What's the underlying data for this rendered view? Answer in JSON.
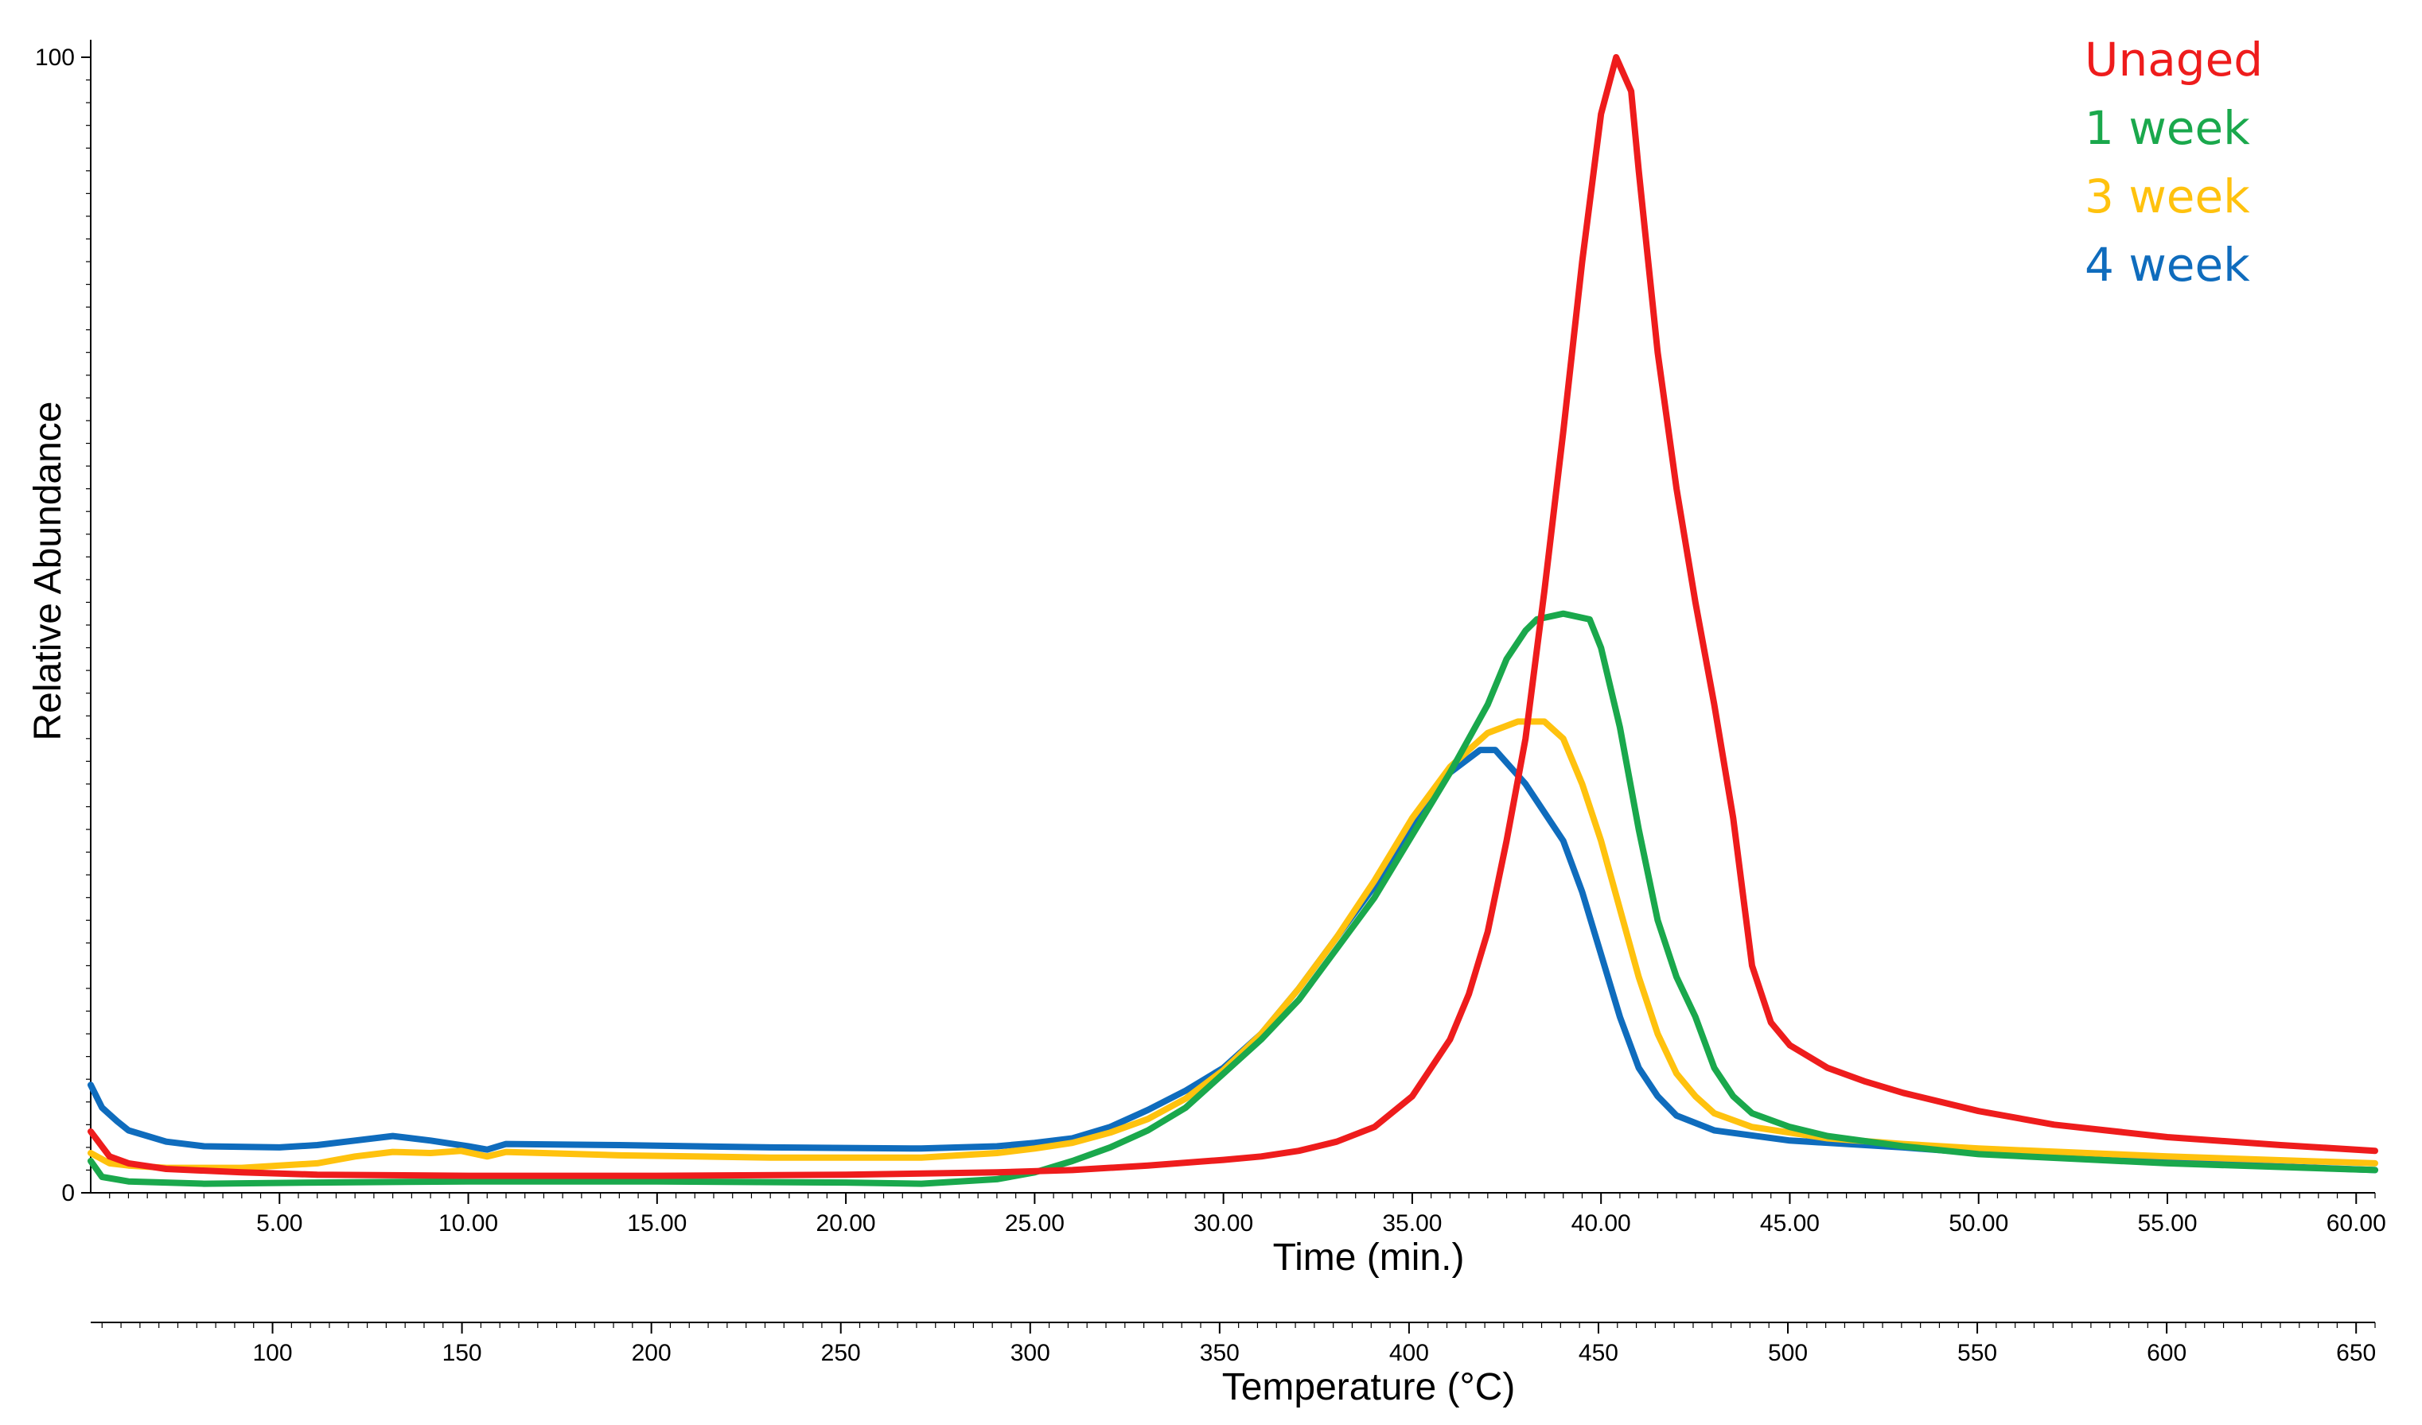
{
  "chart_data": {
    "type": "line",
    "title": "",
    "ylabel": "Relative Abundance",
    "xlabel": "Time (min.)",
    "x2label": "Temperature (°C)",
    "xlim": [
      0,
      60.5
    ],
    "ylim": [
      0,
      100
    ],
    "x2lim": [
      52,
      655
    ],
    "y_ticks": [
      "0",
      "100"
    ],
    "x_ticks": [
      {
        "v": 5,
        "label": "5.00"
      },
      {
        "v": 10,
        "label": "10.00"
      },
      {
        "v": 15,
        "label": "15.00"
      },
      {
        "v": 20,
        "label": "20.00"
      },
      {
        "v": 25,
        "label": "25.00"
      },
      {
        "v": 30,
        "label": "30.00"
      },
      {
        "v": 35,
        "label": "35.00"
      },
      {
        "v": 40,
        "label": "40.00"
      },
      {
        "v": 45,
        "label": "45.00"
      },
      {
        "v": 50,
        "label": "50.00"
      },
      {
        "v": 55,
        "label": "55.00"
      },
      {
        "v": 60,
        "label": "60.00"
      }
    ],
    "x2_ticks": [
      {
        "v": 100,
        "label": "100"
      },
      {
        "v": 150,
        "label": "150"
      },
      {
        "v": 200,
        "label": "200"
      },
      {
        "v": 250,
        "label": "250"
      },
      {
        "v": 300,
        "label": "300"
      },
      {
        "v": 350,
        "label": "350"
      },
      {
        "v": 400,
        "label": "400"
      },
      {
        "v": 450,
        "label": "450"
      },
      {
        "v": 500,
        "label": "500"
      },
      {
        "v": 550,
        "label": "550"
      },
      {
        "v": 600,
        "label": "600"
      },
      {
        "v": 650,
        "label": "650"
      }
    ],
    "legend_position": "top-right",
    "series": [
      {
        "name": "Unaged",
        "color": "#ee1c1c",
        "points": [
          [
            0,
            5.4
          ],
          [
            0.5,
            3.2
          ],
          [
            1,
            2.6
          ],
          [
            2,
            2.1
          ],
          [
            4,
            1.8
          ],
          [
            6,
            1.6
          ],
          [
            10,
            1.5
          ],
          [
            15,
            1.5
          ],
          [
            20,
            1.6
          ],
          [
            24,
            1.8
          ],
          [
            26,
            2.0
          ],
          [
            28,
            2.4
          ],
          [
            30,
            2.9
          ],
          [
            31,
            3.2
          ],
          [
            32,
            3.7
          ],
          [
            33,
            4.5
          ],
          [
            34,
            5.8
          ],
          [
            35,
            8.5
          ],
          [
            36,
            13.5
          ],
          [
            36.5,
            17.5
          ],
          [
            37,
            23
          ],
          [
            37.5,
            31
          ],
          [
            38,
            40
          ],
          [
            38.5,
            53
          ],
          [
            39,
            67
          ],
          [
            39.5,
            82
          ],
          [
            40,
            95
          ],
          [
            40.4,
            100
          ],
          [
            40.8,
            97
          ],
          [
            41,
            90
          ],
          [
            41.5,
            74
          ],
          [
            42,
            62
          ],
          [
            42.5,
            52
          ],
          [
            43,
            43
          ],
          [
            43.5,
            33
          ],
          [
            44,
            20
          ],
          [
            44.5,
            15
          ],
          [
            45,
            13
          ],
          [
            46,
            11
          ],
          [
            47,
            9.8
          ],
          [
            48,
            8.8
          ],
          [
            50,
            7.2
          ],
          [
            52,
            6.0
          ],
          [
            55,
            4.9
          ],
          [
            58,
            4.2
          ],
          [
            60.5,
            3.7
          ]
        ]
      },
      {
        "name": "1 week",
        "color": "#1aa84c",
        "points": [
          [
            0,
            2.8
          ],
          [
            0.3,
            1.4
          ],
          [
            1,
            1.0
          ],
          [
            3,
            0.8
          ],
          [
            6,
            0.9
          ],
          [
            10,
            1.0
          ],
          [
            15,
            1.0
          ],
          [
            20,
            0.9
          ],
          [
            22,
            0.8
          ],
          [
            24,
            1.2
          ],
          [
            25,
            1.8
          ],
          [
            26,
            2.8
          ],
          [
            27,
            4.0
          ],
          [
            28,
            5.5
          ],
          [
            29,
            7.5
          ],
          [
            30,
            10.5
          ],
          [
            31,
            13.5
          ],
          [
            32,
            17
          ],
          [
            33,
            21.5
          ],
          [
            34,
            26
          ],
          [
            35,
            31.5
          ],
          [
            36,
            37
          ],
          [
            37,
            43
          ],
          [
            37.5,
            47
          ],
          [
            38,
            49.5
          ],
          [
            38.3,
            50.5
          ],
          [
            39,
            51
          ],
          [
            39.7,
            50.5
          ],
          [
            40,
            48
          ],
          [
            40.5,
            41
          ],
          [
            41,
            32
          ],
          [
            41.5,
            24
          ],
          [
            42,
            19
          ],
          [
            42.5,
            15.5
          ],
          [
            43,
            11
          ],
          [
            43.5,
            8.5
          ],
          [
            44,
            7
          ],
          [
            45,
            5.8
          ],
          [
            46,
            5.0
          ],
          [
            48,
            4.1
          ],
          [
            50,
            3.4
          ],
          [
            55,
            2.6
          ],
          [
            60.5,
            2.0
          ]
        ]
      },
      {
        "name": "3 week",
        "color": "#ffc20e",
        "points": [
          [
            0,
            3.5
          ],
          [
            0.5,
            2.6
          ],
          [
            1,
            2.4
          ],
          [
            2,
            2.2
          ],
          [
            4,
            2.2
          ],
          [
            6,
            2.6
          ],
          [
            7,
            3.2
          ],
          [
            8,
            3.6
          ],
          [
            9,
            3.5
          ],
          [
            9.8,
            3.7
          ],
          [
            10.5,
            3.2
          ],
          [
            11,
            3.6
          ],
          [
            14,
            3.3
          ],
          [
            18,
            3.1
          ],
          [
            22,
            3.1
          ],
          [
            24,
            3.5
          ],
          [
            25,
            3.9
          ],
          [
            26,
            4.4
          ],
          [
            27,
            5.3
          ],
          [
            28,
            6.5
          ],
          [
            29,
            8.3
          ],
          [
            30,
            10.8
          ],
          [
            31,
            14
          ],
          [
            32,
            18
          ],
          [
            33,
            22.5
          ],
          [
            34,
            27.5
          ],
          [
            35,
            33
          ],
          [
            36,
            37.5
          ],
          [
            37,
            40.5
          ],
          [
            37.8,
            41.5
          ],
          [
            38.5,
            41.5
          ],
          [
            39,
            40
          ],
          [
            39.5,
            36
          ],
          [
            40,
            31
          ],
          [
            40.5,
            25
          ],
          [
            41,
            19
          ],
          [
            41.5,
            14
          ],
          [
            42,
            10.5
          ],
          [
            42.5,
            8.5
          ],
          [
            43,
            7
          ],
          [
            44,
            5.8
          ],
          [
            46,
            4.8
          ],
          [
            48,
            4.3
          ],
          [
            50,
            3.9
          ],
          [
            55,
            3.2
          ],
          [
            60.5,
            2.6
          ]
        ]
      },
      {
        "name": "4 week",
        "color": "#0f6cbd",
        "points": [
          [
            0,
            9.5
          ],
          [
            0.3,
            7.5
          ],
          [
            0.7,
            6.3
          ],
          [
            1,
            5.5
          ],
          [
            2,
            4.5
          ],
          [
            3,
            4.1
          ],
          [
            5,
            4.0
          ],
          [
            6,
            4.2
          ],
          [
            7,
            4.6
          ],
          [
            8,
            5.0
          ],
          [
            9,
            4.6
          ],
          [
            10,
            4.1
          ],
          [
            10.5,
            3.8
          ],
          [
            11,
            4.3
          ],
          [
            14,
            4.2
          ],
          [
            18,
            4.0
          ],
          [
            22,
            3.9
          ],
          [
            24,
            4.1
          ],
          [
            25,
            4.4
          ],
          [
            26,
            4.8
          ],
          [
            27,
            5.8
          ],
          [
            28,
            7.3
          ],
          [
            29,
            9.0
          ],
          [
            30,
            11.0
          ],
          [
            31,
            14
          ],
          [
            32,
            18
          ],
          [
            33,
            22.5
          ],
          [
            34,
            27
          ],
          [
            35,
            32.5
          ],
          [
            36,
            37
          ],
          [
            36.8,
            39
          ],
          [
            37.2,
            39
          ],
          [
            38,
            36
          ],
          [
            39,
            31
          ],
          [
            39.5,
            26.5
          ],
          [
            40,
            21
          ],
          [
            40.5,
            15.5
          ],
          [
            41,
            11
          ],
          [
            41.5,
            8.5
          ],
          [
            42,
            6.8
          ],
          [
            43,
            5.5
          ],
          [
            45,
            4.6
          ],
          [
            48,
            4.0
          ],
          [
            50,
            3.5
          ],
          [
            55,
            2.7
          ],
          [
            60.5,
            2.0
          ]
        ]
      }
    ]
  }
}
